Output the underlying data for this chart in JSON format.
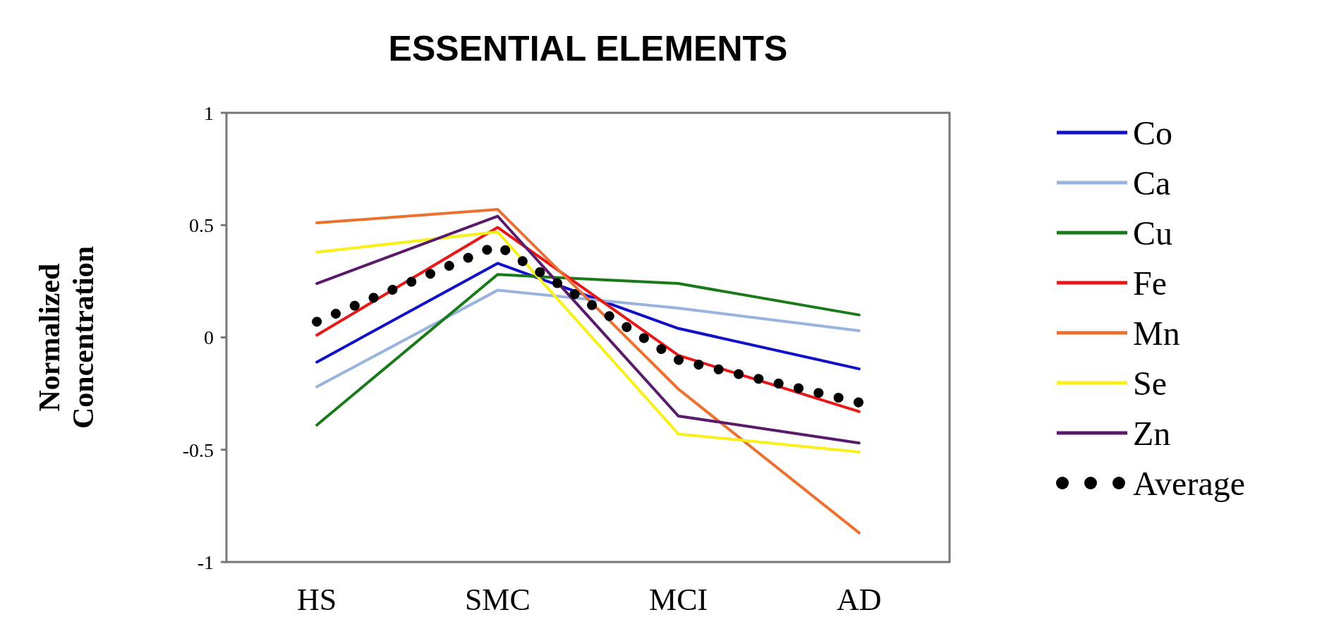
{
  "chart_data": {
    "type": "line",
    "title": "ESSENTIAL ELEMENTS",
    "ylabel": "Normalized\nConcentration",
    "categories": [
      "HS",
      "SMC",
      "MCI",
      "AD"
    ],
    "ylim": [
      -1,
      1
    ],
    "yticks": [
      -1,
      -0.5,
      0,
      0.5,
      1
    ],
    "grid": false,
    "legend": "right",
    "series": [
      {
        "name": "Co",
        "color": "#1010c8",
        "values": [
          -0.11,
          0.33,
          0.04,
          -0.14
        ]
      },
      {
        "name": "Ca",
        "color": "#98b4dc",
        "values": [
          -0.22,
          0.21,
          0.13,
          0.03
        ]
      },
      {
        "name": "Cu",
        "color": "#1a7a1a",
        "values": [
          -0.39,
          0.28,
          0.24,
          0.1
        ]
      },
      {
        "name": "Fe",
        "color": "#e81818",
        "values": [
          0.01,
          0.49,
          -0.08,
          -0.33
        ]
      },
      {
        "name": "Mn",
        "color": "#ec7030",
        "values": [
          0.51,
          0.57,
          -0.23,
          -0.87
        ]
      },
      {
        "name": "Se",
        "color": "#f8f018",
        "values": [
          0.38,
          0.47,
          -0.43,
          -0.51
        ]
      },
      {
        "name": "Zn",
        "color": "#5a1a6a",
        "values": [
          0.24,
          0.54,
          -0.35,
          -0.47
        ]
      },
      {
        "name": "Average",
        "color": "#000000",
        "line_style": "dotted",
        "values": [
          0.07,
          0.41,
          -0.1,
          -0.29
        ]
      }
    ]
  }
}
